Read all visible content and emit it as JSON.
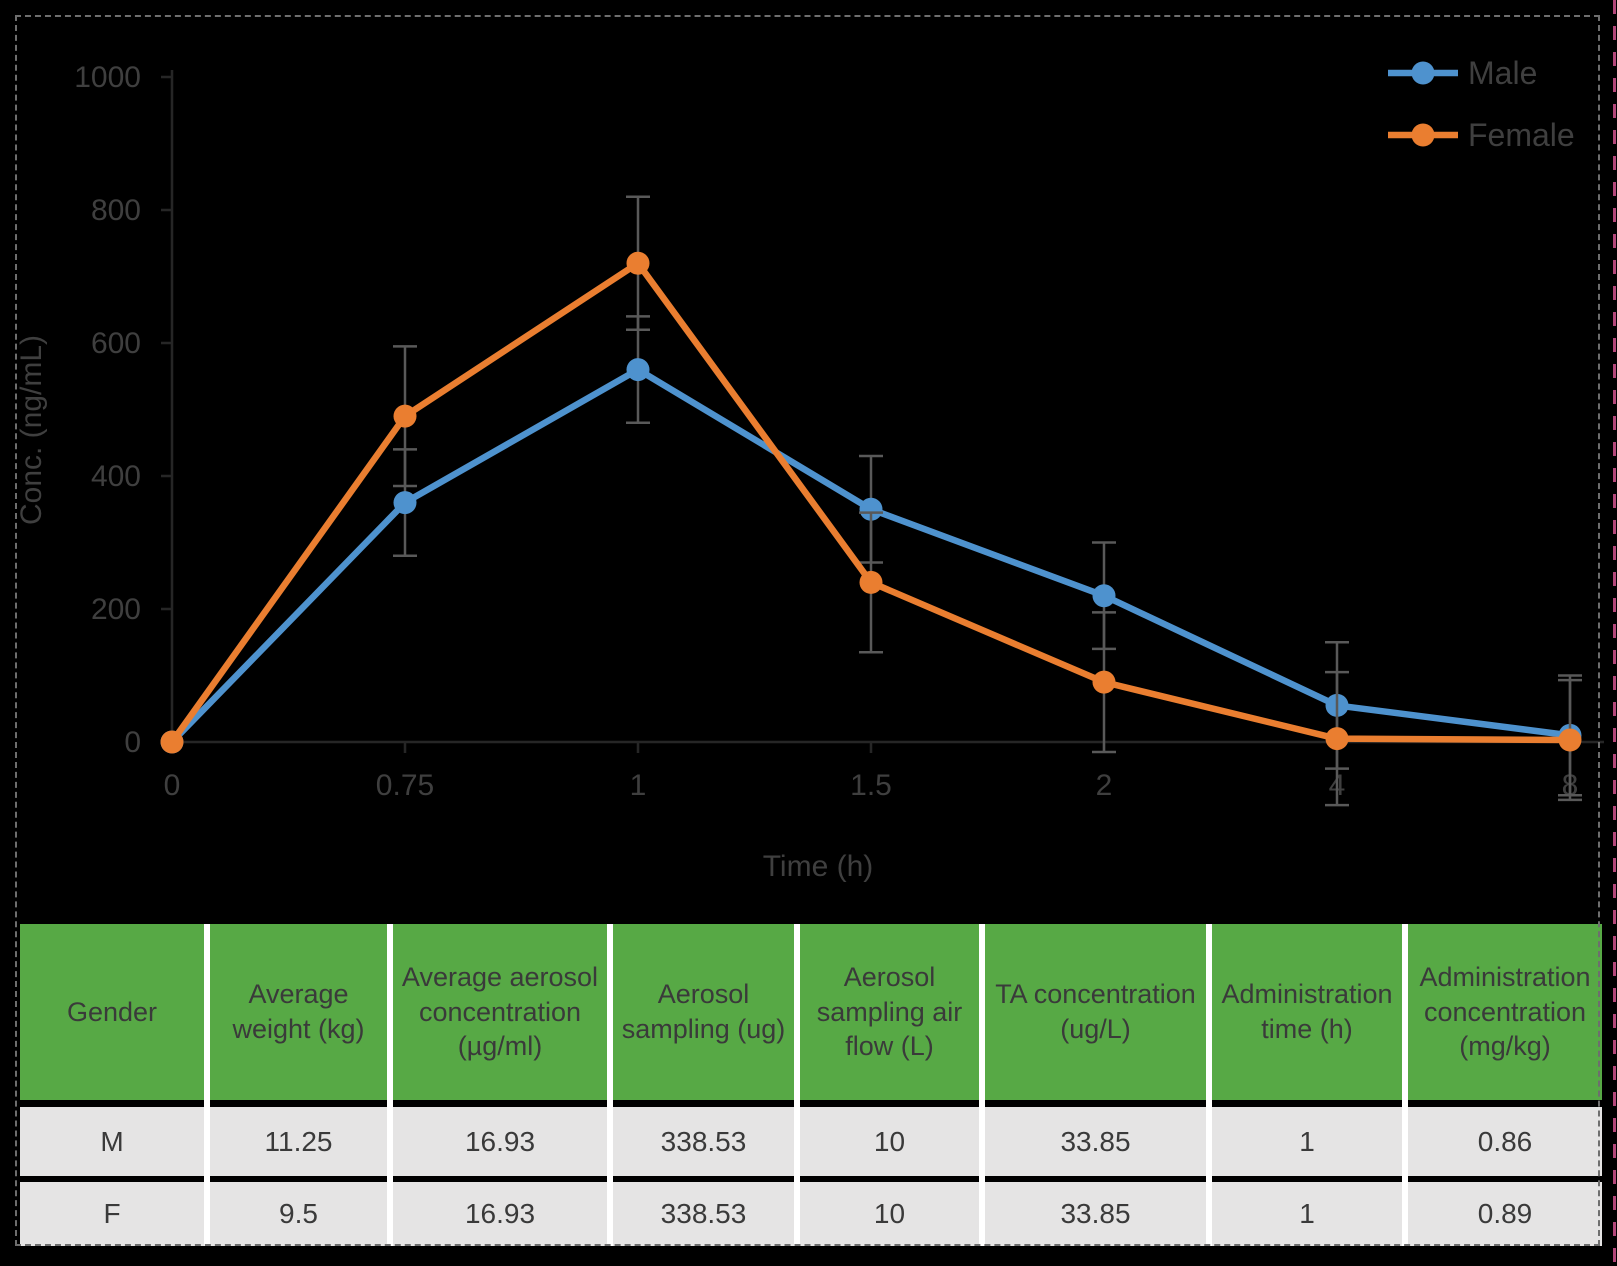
{
  "style": {
    "background": "#000000",
    "accent_blue": "#4E92CE",
    "accent_orange": "#EA7E30",
    "header_green": "#57A945",
    "row_gray": "#E5E4E4",
    "error_gray": "#595959",
    "axis_gray": "#262626",
    "text_gray": "#3F3F3F",
    "table_text": "#3A3A3A",
    "frame_dash_gray": "#6E6E6E",
    "edge_magenta": "#B34679"
  },
  "chart_data": [
    {
      "type": "line",
      "title": "",
      "xlabel": "Time (h)",
      "ylabel": "Conc. (ng/mL)",
      "x_categories": [
        "0",
        "0.75",
        "1",
        "1.5",
        "2",
        "4",
        "8"
      ],
      "y_ticks": [
        0,
        200,
        400,
        600,
        800,
        1000
      ],
      "ylim": [
        0,
        1000
      ],
      "grid": false,
      "legend_position": "top-right",
      "series": [
        {
          "name": "Male",
          "color": "#4E92CE",
          "marker": "circle",
          "values": [
            0,
            360,
            560,
            350,
            220,
            55,
            10
          ],
          "error_plus": [
            0,
            80,
            80,
            80,
            80,
            95,
            90
          ],
          "error_minus": [
            0,
            80,
            80,
            80,
            80,
            95,
            90
          ]
        },
        {
          "name": "Female",
          "color": "#EA7E30",
          "marker": "circle",
          "values": [
            0,
            490,
            720,
            240,
            90,
            5,
            3
          ],
          "error_plus": [
            0,
            105,
            100,
            105,
            105,
            100,
            90
          ],
          "error_minus": [
            0,
            105,
            100,
            105,
            105,
            100,
            90
          ]
        }
      ]
    },
    {
      "type": "table",
      "headers": [
        "Gender",
        "Average weight (kg)",
        "Average aerosol concentration (µg/ml)",
        "Aerosol sampling (ug)",
        "Aerosol sampling air flow (L)",
        "TA concentration (ug/L)",
        "Administration time (h)",
        "Administration concentration (mg/kg)"
      ],
      "rows": [
        [
          "M",
          "11.25",
          "16.93",
          "338.53",
          "10",
          "33.85",
          "1",
          "0.86"
        ],
        [
          "F",
          "9.5",
          "16.93",
          "338.53",
          "10",
          "33.85",
          "1",
          "0.89"
        ]
      ]
    }
  ]
}
